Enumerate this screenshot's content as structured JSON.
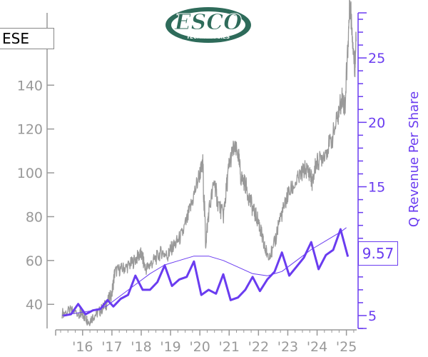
{
  "ticker": "ESE",
  "logo": {
    "brand": "ESCO",
    "subtitle": "TECHNOLOGIES",
    "color": "#2e6b5a"
  },
  "current_value_label": "9.57",
  "colors": {
    "price": "#999999",
    "revenue": "#6a3cf0",
    "axis_left": "#999999",
    "axis_right": "#6a3cf0"
  },
  "chart_data": {
    "type": "line",
    "x_tick_labels": [
      "'16",
      "'17",
      "'18",
      "'19",
      "'20",
      "'21",
      "'22",
      "'23",
      "'24",
      "'25"
    ],
    "x_range": [
      2015.08,
      2025.35
    ],
    "left_axis": {
      "ticks": [
        40,
        60,
        80,
        100,
        120,
        140
      ],
      "range": [
        29,
        173
      ]
    },
    "right_axis": {
      "label": "Q Revenue Per Share",
      "ticks": [
        5,
        10,
        15,
        20,
        25
      ],
      "range": [
        4.0,
        28.5
      ]
    },
    "series": [
      {
        "axis": "left",
        "style": "noisy-thin",
        "points": [
          [
            2015.3,
            36
          ],
          [
            2015.6,
            37
          ],
          [
            2015.9,
            36
          ],
          [
            2016.0,
            35
          ],
          [
            2016.1,
            34
          ],
          [
            2016.2,
            32
          ],
          [
            2016.4,
            35
          ],
          [
            2016.6,
            37
          ],
          [
            2016.8,
            40
          ],
          [
            2017.0,
            45
          ],
          [
            2017.1,
            55
          ],
          [
            2017.3,
            56
          ],
          [
            2017.5,
            57
          ],
          [
            2017.7,
            59
          ],
          [
            2017.9,
            62
          ],
          [
            2018.0,
            63
          ],
          [
            2018.15,
            56
          ],
          [
            2018.3,
            58
          ],
          [
            2018.5,
            61
          ],
          [
            2018.7,
            64
          ],
          [
            2018.9,
            62
          ],
          [
            2019.0,
            65
          ],
          [
            2019.2,
            68
          ],
          [
            2019.4,
            72
          ],
          [
            2019.6,
            80
          ],
          [
            2019.8,
            90
          ],
          [
            2020.0,
            100
          ],
          [
            2020.1,
            103
          ],
          [
            2020.2,
            68
          ],
          [
            2020.3,
            82
          ],
          [
            2020.5,
            96
          ],
          [
            2020.6,
            87
          ],
          [
            2020.8,
            80
          ],
          [
            2020.9,
            92
          ],
          [
            2021.0,
            104
          ],
          [
            2021.15,
            111
          ],
          [
            2021.3,
            109
          ],
          [
            2021.4,
            98
          ],
          [
            2021.55,
            95
          ],
          [
            2021.7,
            88
          ],
          [
            2021.85,
            82
          ],
          [
            2022.0,
            78
          ],
          [
            2022.1,
            72
          ],
          [
            2022.2,
            66
          ],
          [
            2022.3,
            63
          ],
          [
            2022.5,
            64
          ],
          [
            2022.7,
            78
          ],
          [
            2022.9,
            85
          ],
          [
            2023.0,
            90
          ],
          [
            2023.2,
            94
          ],
          [
            2023.4,
            98
          ],
          [
            2023.6,
            102
          ],
          [
            2023.75,
            100
          ],
          [
            2023.85,
            95
          ],
          [
            2023.95,
            104
          ],
          [
            2024.1,
            106
          ],
          [
            2024.3,
            110
          ],
          [
            2024.5,
            115
          ],
          [
            2024.7,
            125
          ],
          [
            2024.85,
            135
          ],
          [
            2024.95,
            130
          ],
          [
            2025.05,
            158
          ],
          [
            2025.12,
            178
          ],
          [
            2025.2,
            165
          ],
          [
            2025.28,
            147
          ],
          [
            2025.33,
            160
          ]
        ]
      },
      {
        "axis": "left",
        "style": "smooth-thin",
        "points": [
          [
            2015.3,
            35
          ],
          [
            2015.8,
            36
          ],
          [
            2016.3,
            37
          ],
          [
            2016.8,
            39
          ],
          [
            2017.3,
            44
          ],
          [
            2017.8,
            49
          ],
          [
            2018.3,
            54
          ],
          [
            2018.8,
            58
          ],
          [
            2019.3,
            60
          ],
          [
            2019.8,
            62
          ],
          [
            2020.3,
            62
          ],
          [
            2020.8,
            60
          ],
          [
            2021.3,
            57
          ],
          [
            2021.8,
            54
          ],
          [
            2022.3,
            53
          ],
          [
            2022.8,
            55
          ],
          [
            2023.3,
            60
          ],
          [
            2023.8,
            65
          ],
          [
            2024.3,
            69
          ],
          [
            2024.8,
            73
          ],
          [
            2025.0,
            75
          ]
        ]
      },
      {
        "axis": "right",
        "style": "bold",
        "points": [
          [
            2015.35,
            5.0
          ],
          [
            2015.6,
            5.1
          ],
          [
            2015.85,
            5.9
          ],
          [
            2016.1,
            5.1
          ],
          [
            2016.35,
            5.4
          ],
          [
            2016.6,
            5.5
          ],
          [
            2016.85,
            6.2
          ],
          [
            2017.05,
            5.7
          ],
          [
            2017.3,
            6.3
          ],
          [
            2017.55,
            6.6
          ],
          [
            2017.8,
            8.1
          ],
          [
            2018.05,
            7.0
          ],
          [
            2018.3,
            7.0
          ],
          [
            2018.55,
            7.6
          ],
          [
            2018.8,
            8.9
          ],
          [
            2019.05,
            7.3
          ],
          [
            2019.3,
            7.8
          ],
          [
            2019.55,
            8.0
          ],
          [
            2019.8,
            9.2
          ],
          [
            2020.05,
            6.6
          ],
          [
            2020.3,
            7.0
          ],
          [
            2020.55,
            6.7
          ],
          [
            2020.8,
            8.2
          ],
          [
            2021.05,
            6.2
          ],
          [
            2021.3,
            6.4
          ],
          [
            2021.55,
            7.0
          ],
          [
            2021.8,
            8.0
          ],
          [
            2022.05,
            6.9
          ],
          [
            2022.3,
            7.8
          ],
          [
            2022.55,
            8.4
          ],
          [
            2022.8,
            9.9
          ],
          [
            2023.05,
            8.1
          ],
          [
            2023.3,
            8.8
          ],
          [
            2023.55,
            9.5
          ],
          [
            2023.8,
            10.7
          ],
          [
            2024.05,
            8.6
          ],
          [
            2024.3,
            9.7
          ],
          [
            2024.55,
            10.1
          ],
          [
            2024.8,
            11.7
          ],
          [
            2025.05,
            9.57
          ]
        ]
      }
    ]
  }
}
